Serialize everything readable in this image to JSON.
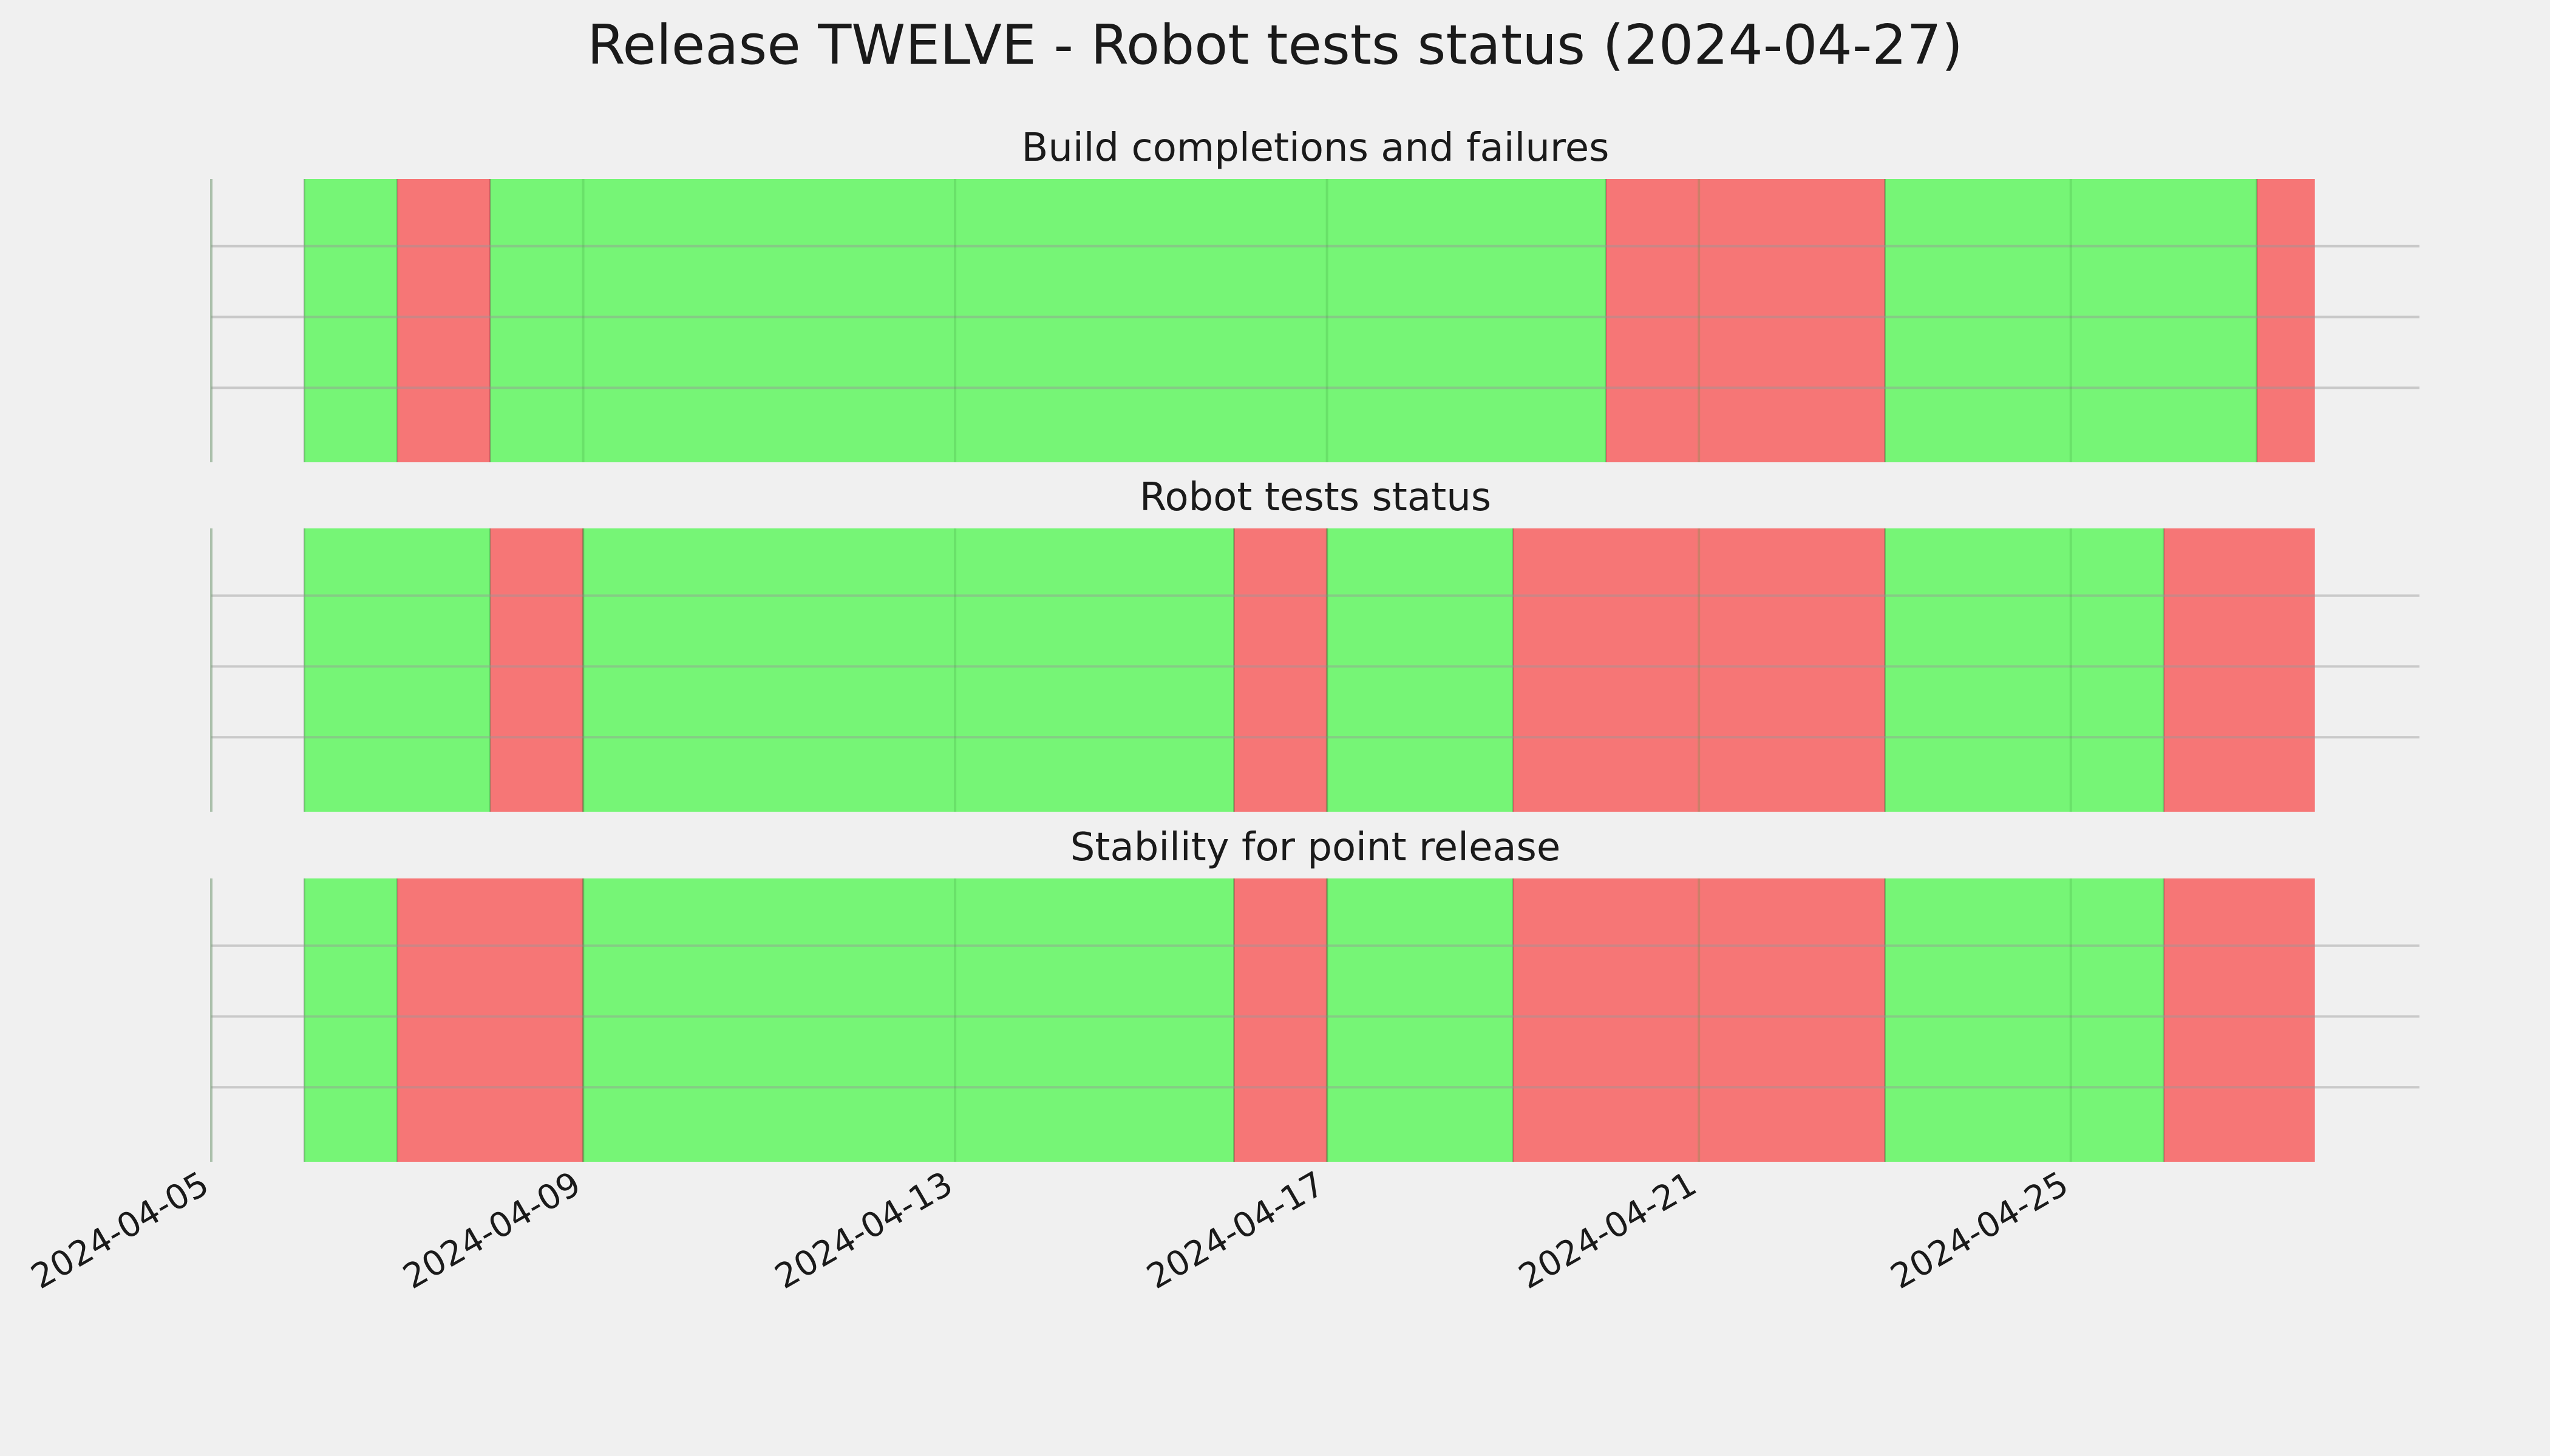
{
  "chart_data": {
    "type": "timeline",
    "title": "Release TWELVE - Robot tests status (2024-04-27)",
    "x_range": [
      "2024-04-05",
      "2024-04-28T18:00"
    ],
    "x_ticks": [
      "2024-04-05",
      "2024-04-09",
      "2024-04-13",
      "2024-04-17",
      "2024-04-21",
      "2024-04-25"
    ],
    "x_tick_labels": [
      "2024-04-05",
      "2024-04-09",
      "2024-04-13",
      "2024-04-17",
      "2024-04-21",
      "2024-04-25"
    ],
    "grid": true,
    "colors": {
      "pass": "#76f576",
      "fail": "#f67676",
      "background": "#f0f0f0",
      "grid": "#cbcbcb"
    },
    "panels": [
      {
        "title": "Build completions and failures",
        "segments": [
          {
            "start": "2024-04-06",
            "end": "2024-04-07",
            "status": "pass"
          },
          {
            "start": "2024-04-07",
            "end": "2024-04-08",
            "status": "fail"
          },
          {
            "start": "2024-04-08",
            "end": "2024-04-20",
            "status": "pass"
          },
          {
            "start": "2024-04-20",
            "end": "2024-04-23",
            "status": "fail"
          },
          {
            "start": "2024-04-23",
            "end": "2024-04-27",
            "status": "pass"
          },
          {
            "start": "2024-04-27",
            "end": "2024-04-27T15:00",
            "status": "fail"
          }
        ]
      },
      {
        "title": "Robot tests status",
        "segments": [
          {
            "start": "2024-04-06",
            "end": "2024-04-08",
            "status": "pass"
          },
          {
            "start": "2024-04-08",
            "end": "2024-04-09",
            "status": "fail"
          },
          {
            "start": "2024-04-09",
            "end": "2024-04-16",
            "status": "pass"
          },
          {
            "start": "2024-04-16",
            "end": "2024-04-17",
            "status": "fail"
          },
          {
            "start": "2024-04-17",
            "end": "2024-04-19",
            "status": "pass"
          },
          {
            "start": "2024-04-19",
            "end": "2024-04-23",
            "status": "fail"
          },
          {
            "start": "2024-04-23",
            "end": "2024-04-26",
            "status": "pass"
          },
          {
            "start": "2024-04-26",
            "end": "2024-04-27T15:00",
            "status": "fail"
          }
        ]
      },
      {
        "title": "Stability for point release",
        "segments": [
          {
            "start": "2024-04-06",
            "end": "2024-04-07",
            "status": "pass"
          },
          {
            "start": "2024-04-07",
            "end": "2024-04-09",
            "status": "fail"
          },
          {
            "start": "2024-04-09",
            "end": "2024-04-16",
            "status": "pass"
          },
          {
            "start": "2024-04-16",
            "end": "2024-04-17",
            "status": "fail"
          },
          {
            "start": "2024-04-17",
            "end": "2024-04-19",
            "status": "pass"
          },
          {
            "start": "2024-04-19",
            "end": "2024-04-23",
            "status": "fail"
          },
          {
            "start": "2024-04-23",
            "end": "2024-04-26",
            "status": "pass"
          },
          {
            "start": "2024-04-26",
            "end": "2024-04-27T15:00",
            "status": "fail"
          }
        ]
      }
    ]
  }
}
